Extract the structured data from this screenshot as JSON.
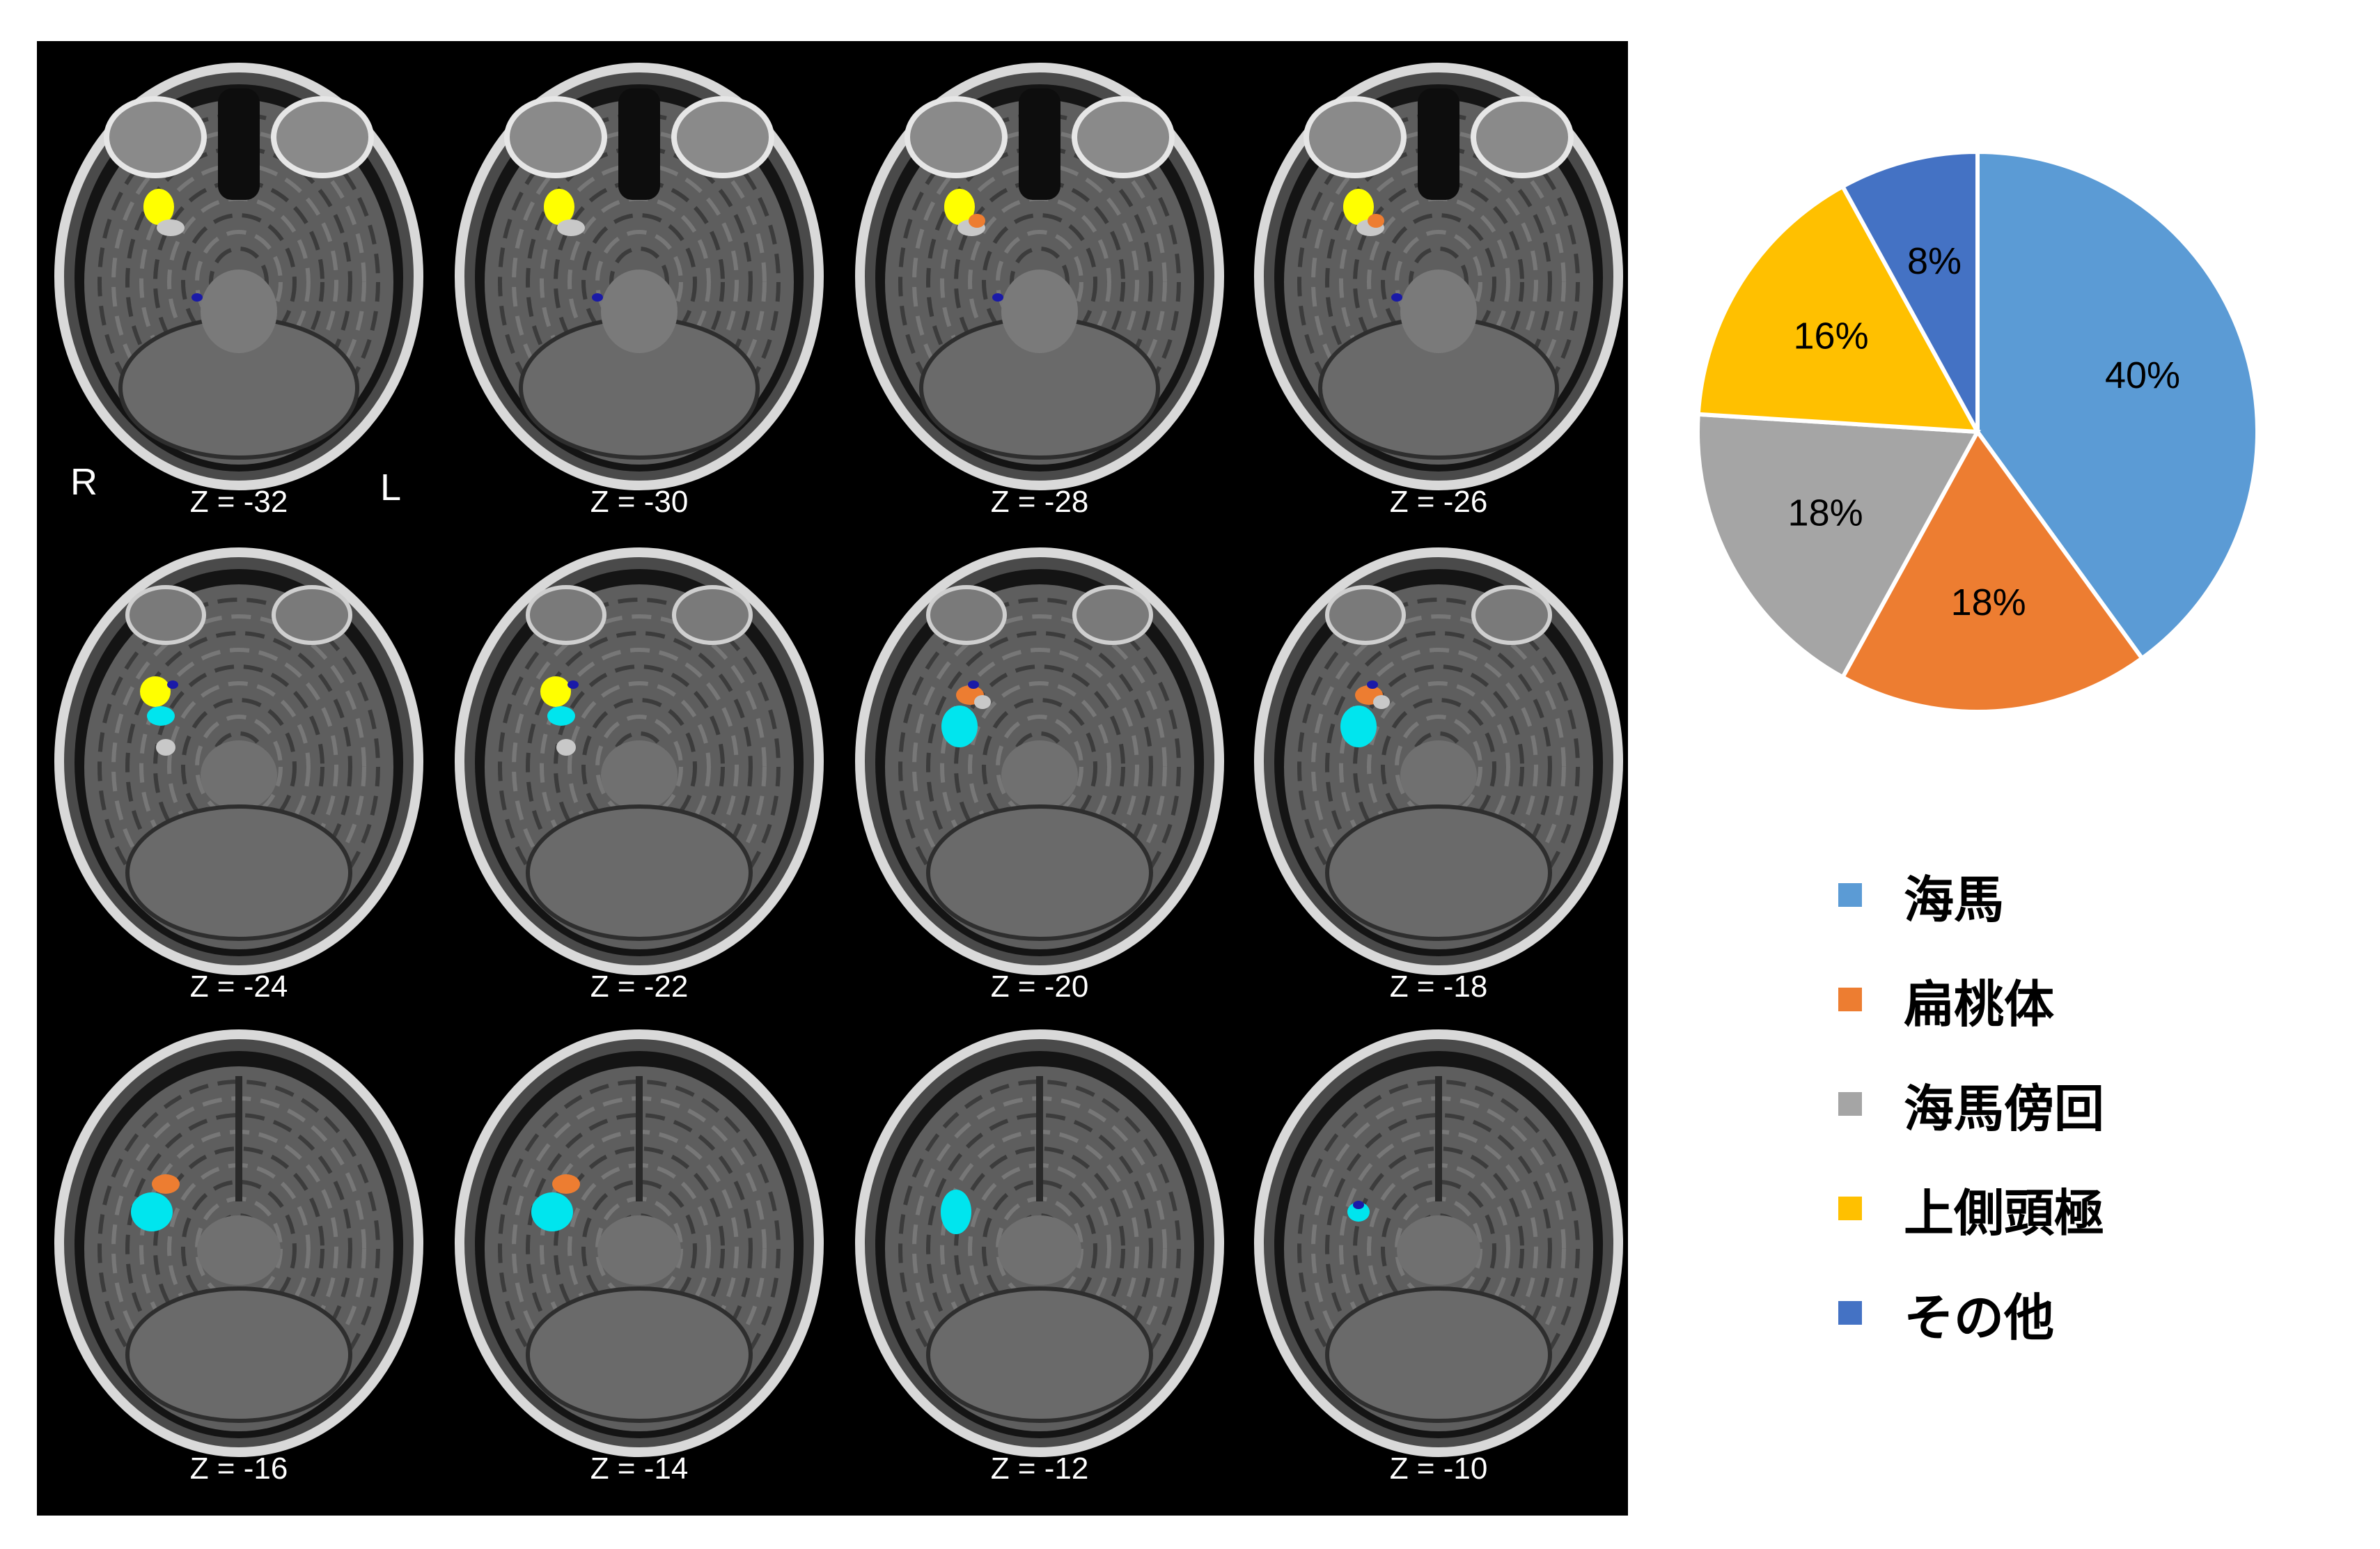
{
  "figure": {
    "orientation": {
      "right": "R",
      "left": "L"
    },
    "slices": [
      {
        "label": "Z = -32"
      },
      {
        "label": "Z = -30"
      },
      {
        "label": "Z = -28"
      },
      {
        "label": "Z = -26"
      },
      {
        "label": "Z = -24"
      },
      {
        "label": "Z = -22"
      },
      {
        "label": "Z = -20"
      },
      {
        "label": "Z = -18"
      },
      {
        "label": "Z = -16"
      },
      {
        "label": "Z = -14"
      },
      {
        "label": "Z = -12"
      },
      {
        "label": "Z = -10"
      }
    ],
    "overlay_colors": {
      "hippocampus": "#00e5ee",
      "amygdala": "#ed7d31",
      "parahippocampal": "#c8c8c8",
      "temporal_pole": "#ffff00",
      "other": "#1a1aa8"
    }
  },
  "chart_data": {
    "type": "pie",
    "start": "12 o'clock, clockwise",
    "slices": [
      {
        "name": "海馬",
        "value": 40,
        "label": "40%",
        "color": "#5b9bd5"
      },
      {
        "name": "扁桃体",
        "value": 18,
        "label": "18%",
        "color": "#ed7d31"
      },
      {
        "name": "海馬傍回",
        "value": 18,
        "label": "18%",
        "color": "#a5a5a5"
      },
      {
        "name": "上側頭極",
        "value": 16,
        "label": "16%",
        "color": "#ffc000"
      },
      {
        "name": "その他",
        "value": 8,
        "label": "8%",
        "color": "#4472c4"
      }
    ],
    "legend": {
      "placement": "bottom-right"
    }
  }
}
